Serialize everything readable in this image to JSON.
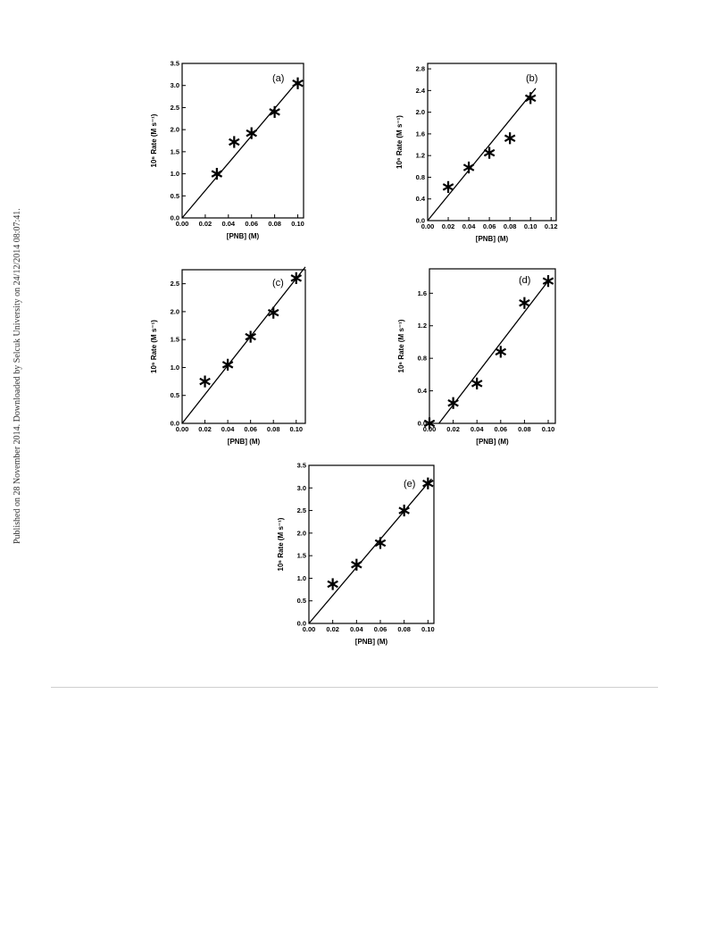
{
  "side_note": "Published on 28 November 2014. Downloaded by Selcuk University on 24/12/2014 08:07:41.",
  "chart_data": [
    {
      "type": "scatter",
      "panel": "(a)",
      "xlabel": "[PNB] (M)",
      "ylabel": "10⁶ Rate (M s⁻¹)",
      "xlim": [
        0.0,
        0.105
      ],
      "ylim": [
        0.0,
        3.5
      ],
      "xticks": [
        "0.00",
        "0.02",
        "0.04",
        "0.06",
        "0.08",
        "0.10"
      ],
      "yticks": [
        "0.0",
        "0.5",
        "1.0",
        "1.5",
        "2.0",
        "2.5",
        "3.0",
        "3.5"
      ],
      "points": {
        "x": [
          0.03,
          0.045,
          0.06,
          0.08,
          0.1
        ],
        "y": [
          1.0,
          1.72,
          1.92,
          2.4,
          3.05
        ]
      },
      "fit_line": {
        "x": [
          0.0,
          0.1
        ],
        "y": [
          0.0,
          3.1
        ]
      },
      "marker": "asterisk",
      "grid": false
    },
    {
      "type": "scatter",
      "panel": "(b)",
      "xlabel": "[PNB] (M)",
      "ylabel": "10⁶ Rate (M s⁻¹)",
      "xlim": [
        0.0,
        0.125
      ],
      "ylim": [
        0.0,
        2.9
      ],
      "xticks": [
        "0.00",
        "0.02",
        "0.04",
        "0.06",
        "0.08",
        "0.10",
        "0.12"
      ],
      "yticks": [
        "0.0",
        "0.4",
        "0.8",
        "1.2",
        "1.6",
        "2.0",
        "2.4",
        "2.8"
      ],
      "points": {
        "x": [
          0.02,
          0.04,
          0.06,
          0.08,
          0.1
        ],
        "y": [
          0.62,
          0.98,
          1.25,
          1.52,
          2.26
        ]
      },
      "fit_line": {
        "x": [
          0.0,
          0.105
        ],
        "y": [
          0.0,
          2.44
        ]
      },
      "marker": "asterisk",
      "grid": false
    },
    {
      "type": "scatter",
      "panel": "(c)",
      "xlabel": "[PNB] (M)",
      "ylabel": "10⁶ Rate (M s⁻¹)",
      "xlim": [
        0.0,
        0.108
      ],
      "ylim": [
        0.0,
        2.75
      ],
      "xticks": [
        "0.00",
        "0.02",
        "0.04",
        "0.06",
        "0.08",
        "0.10"
      ],
      "yticks": [
        "0.0",
        "0.5",
        "1.0",
        "1.5",
        "2.0",
        "2.5"
      ],
      "points": {
        "x": [
          0.02,
          0.04,
          0.06,
          0.08,
          0.1
        ],
        "y": [
          0.75,
          1.05,
          1.55,
          1.98,
          2.6
        ]
      },
      "fit_line": {
        "x": [
          0.0,
          0.108
        ],
        "y": [
          0.0,
          2.8
        ]
      },
      "marker": "asterisk",
      "grid": false
    },
    {
      "type": "scatter",
      "panel": "(d)",
      "xlabel": "[PNB] (M)",
      "ylabel": "10⁶ Rate (M s⁻¹)",
      "xlim": [
        0.0,
        0.106
      ],
      "ylim": [
        0.0,
        1.9
      ],
      "xticks": [
        "0.00",
        "0.02",
        "0.04",
        "0.06",
        "0.08",
        "0.10"
      ],
      "yticks": [
        "0.0",
        "0.4",
        "0.8",
        "1.2",
        "1.6"
      ],
      "points": {
        "x": [
          0.0,
          0.02,
          0.04,
          0.06,
          0.08,
          0.1
        ],
        "y": [
          0.0,
          0.25,
          0.49,
          0.88,
          1.48,
          1.75
        ]
      },
      "fit_line": {
        "x": [
          0.008,
          0.1
        ],
        "y": [
          0.0,
          1.75
        ]
      },
      "marker": "asterisk",
      "grid": false
    },
    {
      "type": "scatter",
      "panel": "(e)",
      "xlabel": "[PNB] (M)",
      "ylabel": "10⁶ Rate (M s⁻¹)",
      "xlim": [
        0.0,
        0.105
      ],
      "ylim": [
        0.0,
        3.5
      ],
      "xticks": [
        "0.00",
        "0.02",
        "0.04",
        "0.06",
        "0.08",
        "0.10"
      ],
      "yticks": [
        "0.0",
        "0.5",
        "1.0",
        "1.5",
        "2.0",
        "2.5",
        "3.0",
        "3.5"
      ],
      "points": {
        "x": [
          0.02,
          0.04,
          0.06,
          0.08,
          0.1
        ],
        "y": [
          0.87,
          1.3,
          1.78,
          2.5,
          3.1
        ]
      },
      "fit_line": {
        "x": [
          0.0,
          0.103
        ],
        "y": [
          0.0,
          3.2
        ]
      },
      "marker": "asterisk",
      "grid": false
    }
  ]
}
